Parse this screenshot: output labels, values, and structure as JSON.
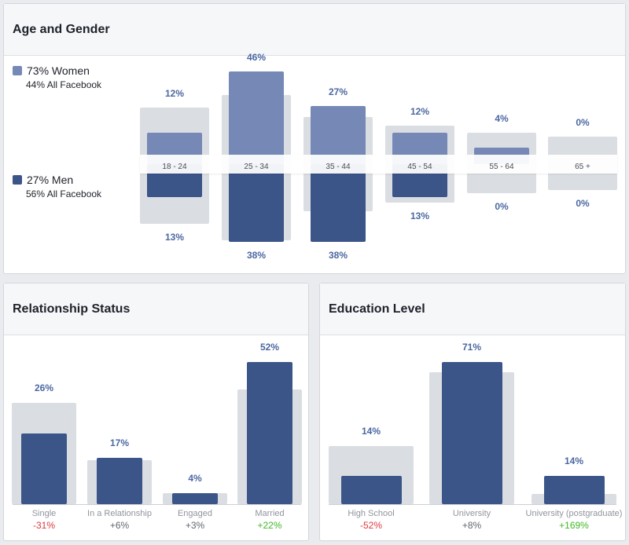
{
  "colors": {
    "women": "#7588b6",
    "men": "#3b5589",
    "benchmark": "#dadde1",
    "negative": "#e0393e",
    "neutral": "#606770",
    "positive": "#42b72a"
  },
  "age_gender": {
    "title": "Age and Gender",
    "women_label": "73% Women",
    "women_sub": "44% All Facebook",
    "men_label": "27% Men",
    "men_sub": "56% All Facebook",
    "chart_data": {
      "type": "bar",
      "categories": [
        "18 - 24",
        "25 - 34",
        "35 - 44",
        "45 - 54",
        "55 - 64",
        "65 +"
      ],
      "women": [
        12,
        46,
        27,
        12,
        4,
        0
      ],
      "men": [
        13,
        38,
        38,
        13,
        0,
        0
      ],
      "women_labels": [
        "12%",
        "46%",
        "27%",
        "12%",
        "4%",
        "0%"
      ],
      "men_labels": [
        "13%",
        "38%",
        "38%",
        "13%",
        "0%",
        "0%"
      ],
      "benchmark_women": [
        26,
        33,
        21,
        16,
        12,
        10
      ],
      "benchmark_men": [
        28,
        37,
        21,
        16,
        11,
        9
      ]
    }
  },
  "relationship": {
    "title": "Relationship Status",
    "chart_data": {
      "type": "bar",
      "categories": [
        "Single",
        "In a Relationship",
        "Engaged",
        "Married"
      ],
      "values": [
        26,
        17,
        4,
        52
      ],
      "labels": [
        "26%",
        "17%",
        "4%",
        "52%"
      ],
      "benchmark": [
        37,
        16,
        4,
        42
      ],
      "changes": [
        "-31%",
        "+6%",
        "+3%",
        "+22%"
      ],
      "change_types": [
        "negative",
        "neutral",
        "neutral",
        "positive"
      ]
    }
  },
  "education": {
    "title": "Education Level",
    "chart_data": {
      "type": "bar",
      "categories": [
        "High School",
        "University",
        "University (postgraduate)"
      ],
      "values": [
        14,
        71,
        14
      ],
      "labels": [
        "14%",
        "71%",
        "14%"
      ],
      "benchmark": [
        29,
        66,
        5
      ],
      "changes": [
        "-52%",
        "+8%",
        "+169%"
      ],
      "change_types": [
        "negative",
        "neutral",
        "positive"
      ]
    }
  }
}
